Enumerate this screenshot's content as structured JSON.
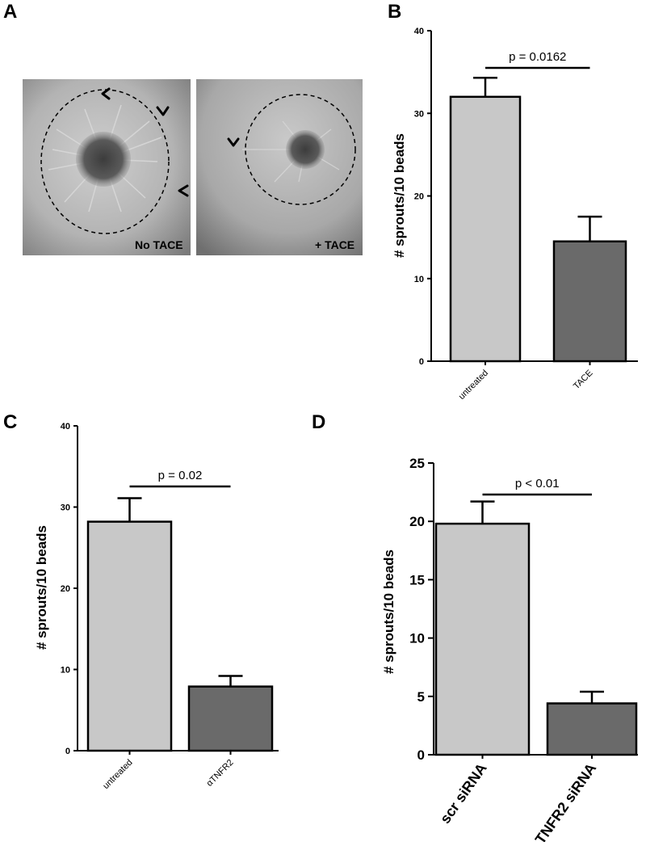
{
  "panel_a": {
    "letter": "A",
    "images": [
      {
        "label": "No TACE"
      },
      {
        "label": "+ TACE"
      }
    ]
  },
  "chart_data": [
    {
      "panel": "B",
      "type": "bar",
      "categories": [
        "untreated",
        "TACE"
      ],
      "values": [
        32,
        14.5
      ],
      "errors": [
        2.3,
        3.0
      ],
      "colors": [
        "#c8c8c8",
        "#6a6a6a"
      ],
      "ylabel": "# sprouts/10 beads",
      "yticks": [
        0,
        10,
        20,
        30,
        40
      ],
      "ylim": [
        0,
        40
      ],
      "annotation": "p = 0.0162"
    },
    {
      "panel": "C",
      "type": "bar",
      "categories": [
        "untreated",
        "αTNFR2"
      ],
      "values": [
        28.2,
        7.9
      ],
      "errors": [
        2.9,
        1.3
      ],
      "colors": [
        "#c8c8c8",
        "#6a6a6a"
      ],
      "ylabel": "# sprouts/10 beads",
      "yticks": [
        0,
        10,
        20,
        30,
        40
      ],
      "ylim": [
        0,
        40
      ],
      "annotation": "p = 0.02"
    },
    {
      "panel": "D",
      "type": "bar",
      "categories": [
        "scr siRNA",
        "TNFR2 siRNA"
      ],
      "values": [
        19.8,
        4.4
      ],
      "errors": [
        1.9,
        1.0
      ],
      "colors": [
        "#c8c8c8",
        "#6a6a6a"
      ],
      "ylabel": "# sprouts/10 beads",
      "yticks": [
        0,
        5,
        10,
        15,
        20,
        25
      ],
      "ylim": [
        0,
        25
      ],
      "annotation": "p < 0.01"
    }
  ]
}
